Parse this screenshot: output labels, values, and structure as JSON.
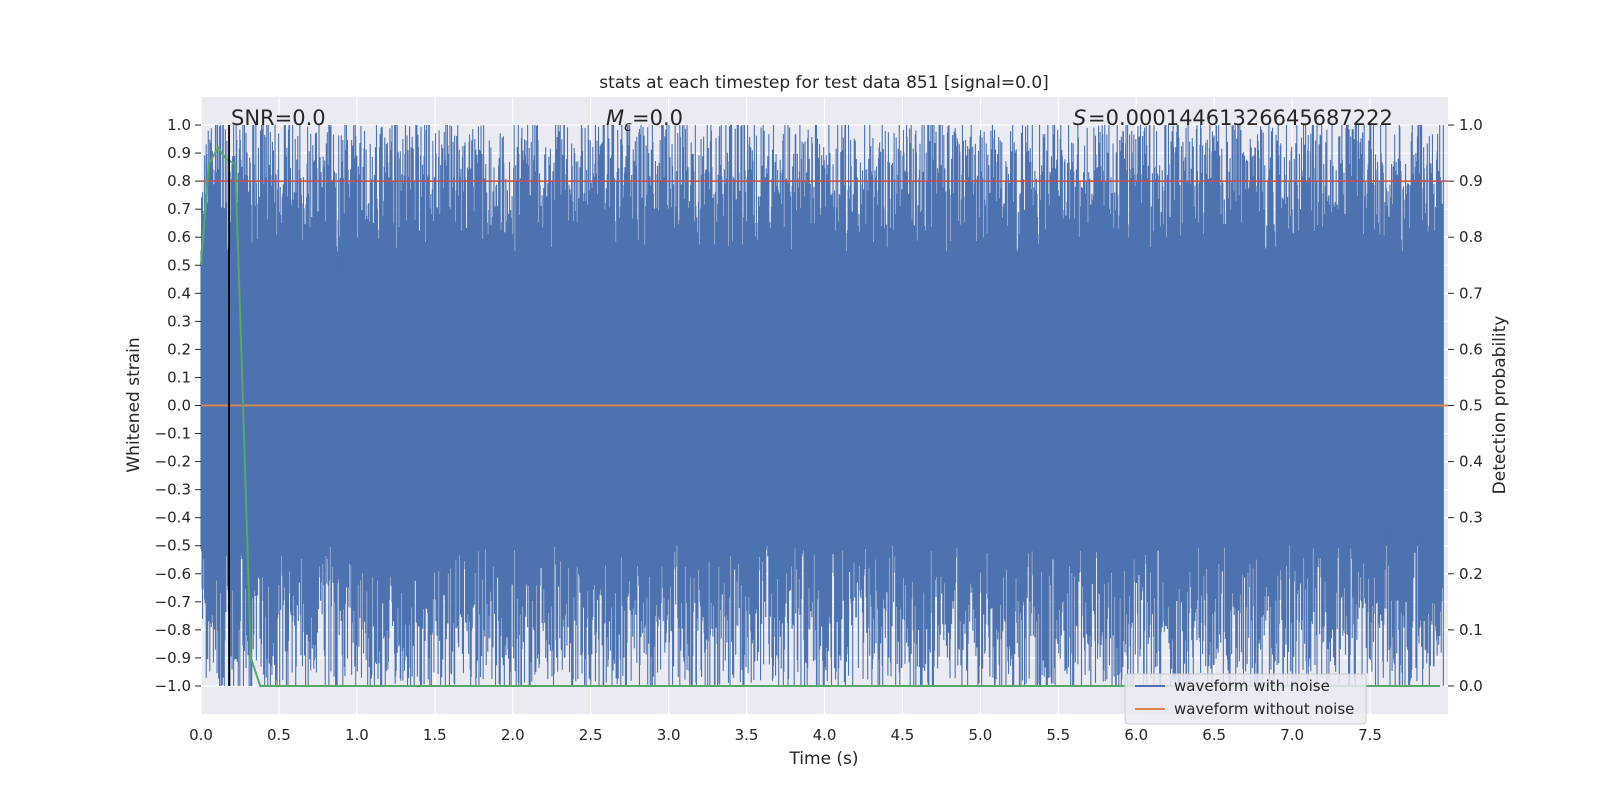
{
  "chart_data": {
    "type": "line",
    "title": "stats at each timestep for test data 851 [signal=0.0]",
    "xlabel": "Time (s)",
    "ylabel": "Whitened strain",
    "ylabel_right": "Detection probability",
    "xlim": [
      0.0,
      8.0
    ],
    "ylim": [
      -1.1,
      1.1
    ],
    "ylim_right": [
      -0.05,
      1.05
    ],
    "x_ticks": [
      "0.0",
      "0.5",
      "1.0",
      "1.5",
      "2.0",
      "2.5",
      "3.0",
      "3.5",
      "4.0",
      "4.5",
      "5.0",
      "5.5",
      "6.0",
      "6.5",
      "7.0",
      "7.5"
    ],
    "y_ticks": [
      "1.0",
      "0.9",
      "0.8",
      "0.7",
      "0.6",
      "0.5",
      "0.4",
      "0.3",
      "0.2",
      "0.1",
      "0.0",
      "−0.1",
      "−0.2",
      "−0.3",
      "−0.4",
      "−0.5",
      "−0.6",
      "−0.7",
      "−0.8",
      "−0.9",
      "−1.0"
    ],
    "y_ticks_right": [
      "1.0",
      "0.9",
      "0.8",
      "0.7",
      "0.6",
      "0.5",
      "0.4",
      "0.3",
      "0.2",
      "0.1",
      "0.0"
    ],
    "annotations": {
      "snr": "SNR=0.0",
      "mc": "=0.0",
      "s": "=0.00014461326645687222"
    },
    "grid": true,
    "legend_position": "lower right",
    "colors": {
      "noise": "#4c72b0",
      "clean": "#dd8452",
      "probability": "#55a868",
      "threshold": "#c44e52",
      "marker": "#000000",
      "axes_bg": "#eaeaf2",
      "grid": "#ffffff"
    },
    "series": [
      {
        "name": "waveform with noise",
        "description_values": "dense whitened noise spanning approximately -1.0 to 1.0 over 0 to 8 s",
        "amplitude_range": [
          -1.0,
          1.0
        ]
      },
      {
        "name": "waveform without noise",
        "x": [
          0.0,
          8.0
        ],
        "y": [
          0.0,
          0.0
        ]
      },
      {
        "axis": "right",
        "x": [
          0.0,
          0.05,
          0.11,
          0.16,
          0.22,
          0.27,
          0.32,
          0.38,
          0.5,
          1.0,
          2.0,
          3.0,
          4.0,
          5.0,
          6.0,
          7.0,
          7.95
        ],
        "y": [
          0.75,
          0.93,
          0.96,
          0.94,
          0.93,
          0.5,
          0.05,
          0.0,
          0.0,
          0.0,
          0.0,
          0.0,
          0.0,
          0.0,
          0.0,
          0.0,
          0.0
        ]
      }
    ],
    "threshold_y_right": 0.9,
    "marker_x": 0.18
  }
}
